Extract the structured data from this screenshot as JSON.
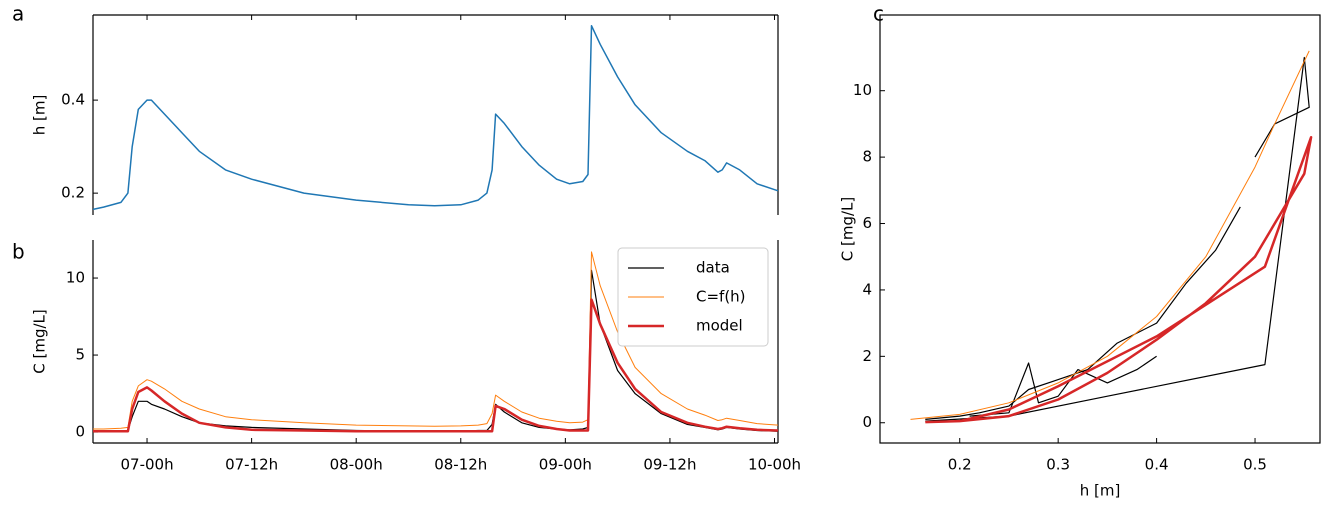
{
  "chart_data": [
    {
      "type": "line",
      "label": "a",
      "ylabel": "h [m]",
      "x": [
        17.8,
        19,
        21,
        21.8,
        22.3,
        23,
        24,
        24.5,
        26,
        28,
        30,
        33,
        36,
        42,
        48,
        54,
        57,
        60,
        62,
        63,
        63.6,
        64,
        65,
        67,
        69,
        71,
        72.5,
        74,
        74.6,
        75,
        76,
        78,
        80,
        83,
        86,
        88,
        89.5,
        90,
        90.5,
        92,
        94,
        96.4
      ],
      "values": [
        0.165,
        0.17,
        0.18,
        0.2,
        0.3,
        0.38,
        0.4,
        0.4,
        0.37,
        0.33,
        0.29,
        0.25,
        0.23,
        0.2,
        0.185,
        0.175,
        0.173,
        0.175,
        0.185,
        0.2,
        0.25,
        0.37,
        0.35,
        0.3,
        0.26,
        0.23,
        0.22,
        0.225,
        0.24,
        0.56,
        0.52,
        0.45,
        0.39,
        0.33,
        0.29,
        0.27,
        0.245,
        0.25,
        0.265,
        0.25,
        0.22,
        0.205
      ],
      "color": "#1f77b4",
      "linewidth": 1.5,
      "xlim": [
        17.8,
        96.4
      ],
      "ylim": [
        0.153,
        0.583
      ],
      "yticks": [
        0.2,
        0.4
      ]
    },
    {
      "type": "line",
      "label": "b",
      "ylabel": "C [mg/L]",
      "legend": "upper right",
      "x": [
        17.8,
        19,
        21,
        21.8,
        22.3,
        23,
        24,
        24.5,
        26,
        28,
        30,
        33,
        36,
        42,
        48,
        54,
        57,
        60,
        62,
        63,
        63.6,
        64,
        65,
        67,
        69,
        71,
        72.5,
        74,
        74.6,
        75,
        76,
        78,
        80,
        83,
        86,
        88,
        89.5,
        90,
        90.5,
        92,
        94,
        96.4
      ],
      "series": [
        {
          "name": "data",
          "color": "#000000",
          "linewidth": 1.2,
          "values": [
            0.05,
            0.05,
            0.05,
            0.1,
            1.0,
            2.0,
            2.0,
            1.8,
            1.5,
            1.0,
            0.6,
            0.4,
            0.3,
            0.2,
            0.1,
            0.05,
            0.05,
            0.05,
            0.1,
            0.1,
            0.5,
            1.8,
            1.3,
            0.6,
            0.3,
            0.2,
            0.15,
            0.2,
            0.3,
            10.5,
            7,
            4,
            2.5,
            1.2,
            0.5,
            0.3,
            0.15,
            0.2,
            0.3,
            0.2,
            0.1,
            0.05
          ]
        },
        {
          "name": "C=f(h)",
          "color": "#ff7f0e",
          "linewidth": 1,
          "values": [
            0.2,
            0.2,
            0.25,
            0.3,
            2.0,
            3.0,
            3.4,
            3.3,
            2.8,
            2.0,
            1.5,
            1.0,
            0.8,
            0.6,
            0.45,
            0.4,
            0.38,
            0.4,
            0.45,
            0.55,
            1.2,
            2.4,
            2.0,
            1.3,
            0.9,
            0.7,
            0.6,
            0.65,
            0.8,
            11.7,
            9.5,
            6.5,
            4.2,
            2.5,
            1.5,
            1.1,
            0.75,
            0.8,
            0.9,
            0.75,
            0.55,
            0.45
          ]
        },
        {
          "name": "model",
          "color": "#d62728",
          "linewidth": 2.5,
          "values": [
            0.05,
            0.05,
            0.05,
            0.05,
            1.5,
            2.6,
            2.9,
            2.7,
            2.0,
            1.2,
            0.6,
            0.3,
            0.15,
            0.1,
            0.05,
            0.05,
            0.05,
            0.05,
            0.05,
            0.05,
            0.05,
            1.7,
            1.5,
            0.8,
            0.4,
            0.2,
            0.1,
            0.1,
            0.1,
            8.6,
            7,
            4.5,
            2.8,
            1.3,
            0.6,
            0.35,
            0.2,
            0.25,
            0.35,
            0.25,
            0.15,
            0.1
          ]
        }
      ],
      "xlim": [
        17.8,
        96.4
      ],
      "ylim": [
        -0.71,
        12.47
      ],
      "yticks": [
        0,
        5,
        10
      ],
      "xticks": [
        {
          "value": 24,
          "label": "07-00h"
        },
        {
          "value": 36,
          "label": "07-12h"
        },
        {
          "value": 48,
          "label": "08-00h"
        },
        {
          "value": 60,
          "label": "08-12h"
        },
        {
          "value": 72,
          "label": "09-00h"
        },
        {
          "value": 84,
          "label": "09-12h"
        },
        {
          "value": 96,
          "label": "10-00h"
        }
      ]
    },
    {
      "type": "line",
      "label": "c",
      "xlabel": "h [m]",
      "ylabel": "C [mg/L]",
      "series": [
        {
          "color": "#000000",
          "linewidth": 1.2,
          "x": [
            0.165,
            0.2,
            0.22,
            0.25,
            0.27,
            0.3,
            0.33,
            0.36,
            0.4,
            0.43,
            0.46,
            0.485,
            null,
            0.21,
            0.25,
            0.27,
            0.28,
            0.3,
            0.32,
            0.35,
            0.38,
            0.4,
            null,
            0.165,
            0.25,
            0.35,
            0.51,
            0.55,
            0.555,
            0.52,
            0.5
          ],
          "values": [
            0.1,
            0.2,
            0.3,
            0.5,
            1.0,
            1.3,
            1.6,
            2.4,
            3.0,
            4.2,
            5.2,
            6.5,
            null,
            0.2,
            0.3,
            1.8,
            0.6,
            0.8,
            1.6,
            1.2,
            1.6,
            2.0,
            null,
            0.05,
            0.2,
            0.8,
            1.75,
            11.0,
            9.5,
            9.0,
            8.0
          ]
        },
        {
          "color": "#ff7f0e",
          "linewidth": 1,
          "x": [
            0.15,
            0.2,
            0.25,
            0.3,
            0.35,
            0.4,
            0.45,
            0.5,
            0.52,
            0.555
          ],
          "values": [
            0.1,
            0.25,
            0.6,
            1.2,
            2.0,
            3.2,
            5.0,
            7.7,
            9.0,
            11.2
          ]
        },
        {
          "color": "#d62728",
          "linewidth": 2.5,
          "x": [
            0.165,
            0.2,
            0.25,
            0.3,
            0.35,
            0.4,
            0.45,
            0.5,
            0.55,
            0.557,
            0.51,
            0.4,
            0.3,
            0.25,
            0.2,
            0.165
          ],
          "values": [
            0.02,
            0.05,
            0.2,
            0.7,
            1.5,
            2.5,
            3.6,
            5.0,
            7.5,
            8.6,
            4.7,
            2.6,
            1.1,
            0.4,
            0.05,
            0.02
          ]
        }
      ],
      "xlim": [
        0.119,
        0.566
      ],
      "ylim": [
        -0.61,
        12.28
      ],
      "xticks": [
        0.2,
        0.3,
        0.4,
        0.5
      ],
      "yticks": [
        0,
        2,
        4,
        6,
        8,
        10
      ]
    }
  ]
}
